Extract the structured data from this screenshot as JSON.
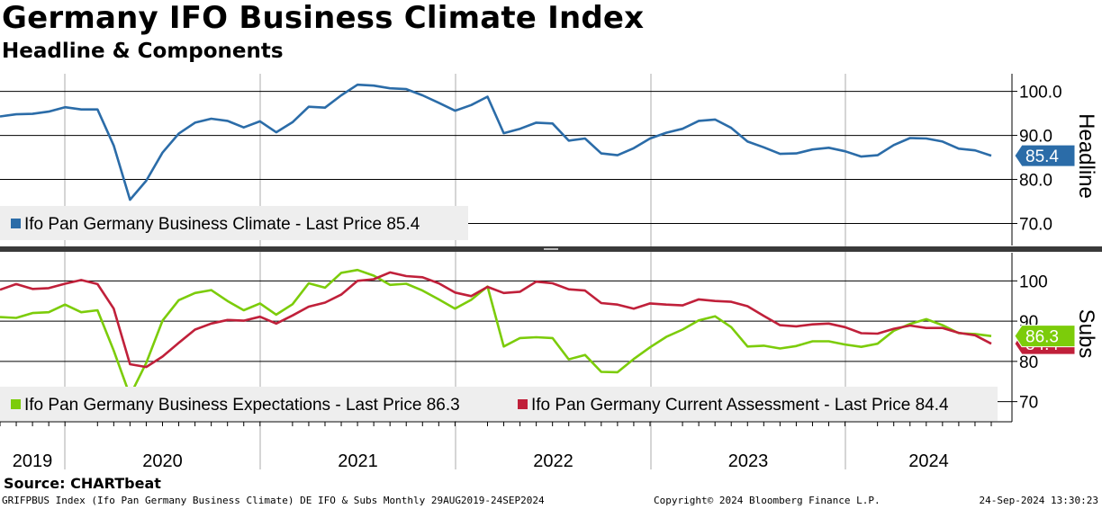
{
  "title": "Germany IFO Business Climate Index",
  "subtitle": "Headline & Components",
  "source": "Source: CHARTbeat",
  "footer": {
    "left": "GRIFPBUS Index (Ifo Pan Germany Business Climate) DE IFO & Subs  Monthly 29AUG2019-24SEP2024",
    "center": "Copyright© 2024 Bloomberg Finance L.P.",
    "right": "24-Sep-2024 13:30:23"
  },
  "colors": {
    "headline": "#2b6ca8",
    "expectations": "#7ccc0a",
    "current": "#c0203a"
  },
  "chart_data": {
    "type": "line",
    "x_axis": {
      "labels": [
        "2019",
        "2020",
        "2021",
        "2022",
        "2023",
        "2024"
      ],
      "start": "2019-08",
      "end": "2024-09",
      "frequency": "monthly"
    },
    "x": [
      "2019-08",
      "2019-09",
      "2019-10",
      "2019-11",
      "2019-12",
      "2020-01",
      "2020-02",
      "2020-03",
      "2020-04",
      "2020-05",
      "2020-06",
      "2020-07",
      "2020-08",
      "2020-09",
      "2020-10",
      "2020-11",
      "2020-12",
      "2021-01",
      "2021-02",
      "2021-03",
      "2021-04",
      "2021-05",
      "2021-06",
      "2021-07",
      "2021-08",
      "2021-09",
      "2021-10",
      "2021-11",
      "2021-12",
      "2022-01",
      "2022-02",
      "2022-03",
      "2022-04",
      "2022-05",
      "2022-06",
      "2022-07",
      "2022-08",
      "2022-09",
      "2022-10",
      "2022-11",
      "2022-12",
      "2023-01",
      "2023-02",
      "2023-03",
      "2023-04",
      "2023-05",
      "2023-06",
      "2023-07",
      "2023-08",
      "2023-09",
      "2023-10",
      "2023-11",
      "2023-12",
      "2024-01",
      "2024-02",
      "2024-03",
      "2024-04",
      "2024-05",
      "2024-06",
      "2024-07",
      "2024-08",
      "2024-09"
    ],
    "panels": [
      {
        "axis_label": "Headline",
        "ylim": [
          65,
          104
        ],
        "yticks": [
          "100.0",
          "90.0",
          "80.0",
          "70.0"
        ],
        "ytick_values": [
          100,
          90,
          80,
          70
        ],
        "legend": [
          "Ifo Pan Germany Business Climate - Last Price 85.4"
        ],
        "last_price_badges": [
          "85.4"
        ],
        "series": [
          {
            "name": "Ifo Pan Germany Business Climate",
            "color_key": "headline",
            "values": [
              94.3,
              94.8,
              94.9,
              95.4,
              96.4,
              95.9,
              95.9,
              87.7,
              75.4,
              79.7,
              86.1,
              90.4,
              92.9,
              93.8,
              93.3,
              91.8,
              93.2,
              90.7,
              93.0,
              96.5,
              96.3,
              99.1,
              101.5,
              101.3,
              100.7,
              100.5,
              99.1,
              97.4,
              95.6,
              96.9,
              98.8,
              90.5,
              91.5,
              92.9,
              92.7,
              88.8,
              89.3,
              85.9,
              85.5,
              87.1,
              89.3,
              90.6,
              91.5,
              93.3,
              93.6,
              91.7,
              88.6,
              87.3,
              85.8,
              85.9,
              86.8,
              87.2,
              86.4,
              85.2,
              85.5,
              87.8,
              89.4,
              89.3,
              88.6,
              87.0,
              86.6,
              85.4
            ]
          }
        ]
      },
      {
        "axis_label": "Subs",
        "ylim": [
          65,
          107
        ],
        "yticks": [
          "100",
          "90",
          "80",
          "70"
        ],
        "ytick_values": [
          100,
          90,
          80,
          70
        ],
        "legend": [
          "Ifo Pan Germany Business Expectations - Last Price 86.3",
          "Ifo Pan Germany Current Assessment - Last Price 84.4"
        ],
        "last_price_badges": [
          "86.3",
          "84.4"
        ],
        "series": [
          {
            "name": "Ifo Pan Germany Business Expectations",
            "color_key": "expectations",
            "values": [
              91.0,
              90.8,
              92.0,
              92.2,
              94.1,
              92.2,
              92.7,
              82.7,
              71.5,
              79.6,
              90.1,
              95.2,
              97.0,
              97.7,
              95.0,
              92.7,
              94.4,
              91.6,
              94.2,
              99.4,
              98.3,
              102.0,
              102.7,
              101.3,
              99.0,
              99.3,
              97.6,
              95.4,
              93.1,
              95.3,
              98.6,
              83.7,
              85.8,
              86.0,
              85.8,
              80.5,
              81.6,
              77.4,
              77.3,
              80.6,
              83.5,
              86.1,
              87.9,
              90.2,
              91.2,
              88.5,
              83.7,
              83.9,
              83.2,
              83.8,
              85.0,
              85.0,
              84.2,
              83.6,
              84.4,
              87.6,
              89.3,
              90.5,
              89.0,
              87.0,
              86.8,
              86.3
            ]
          },
          {
            "name": "Ifo Pan Germany Current Assessment",
            "color_key": "current",
            "values": [
              97.8,
              99.2,
              98.0,
              98.2,
              99.3,
              100.2,
              99.2,
              93.1,
              79.3,
              78.6,
              81.2,
              84.6,
              87.9,
              89.4,
              90.3,
              90.1,
              91.1,
              89.4,
              91.4,
              93.6,
              94.6,
              96.6,
              100.0,
              100.4,
              102.1,
              101.2,
              100.9,
              99.4,
              97.1,
              96.2,
              98.5,
              97.0,
              97.3,
              99.8,
              99.4,
              97.9,
              97.6,
              94.5,
              94.1,
              93.1,
              94.4,
              94.1,
              93.9,
              95.4,
              95.0,
              94.8,
              93.7,
              91.3,
              89.0,
              88.7,
              89.2,
              89.4,
              88.5,
              87.0,
              86.9,
              88.1,
              88.9,
              88.3,
              88.3,
              87.1,
              86.5,
              84.4
            ]
          }
        ]
      }
    ]
  }
}
